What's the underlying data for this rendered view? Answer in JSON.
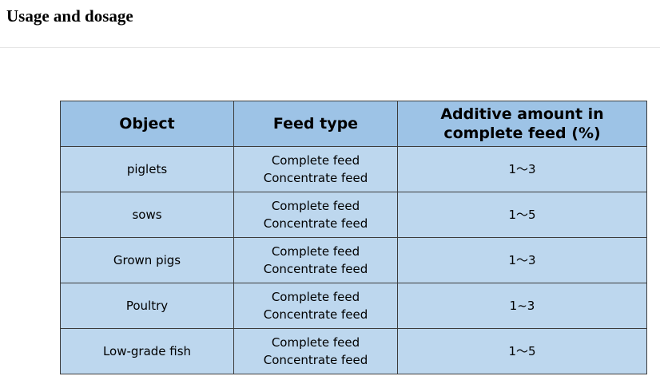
{
  "page": {
    "title": "Usage and dosage"
  },
  "table": {
    "headers": {
      "object": "Object",
      "feed_type": "Feed type",
      "amount": "Additive amount in complete feed (%)"
    },
    "rows": [
      {
        "object": "piglets",
        "feed_line1": "Complete feed",
        "feed_line2": "Concentrate feed",
        "amount": "1～3"
      },
      {
        "object": "sows",
        "feed_line1": "Complete feed",
        "feed_line2": "Concentrate feed",
        "amount": "1～5"
      },
      {
        "object": "Grown pigs",
        "feed_line1": "Complete feed",
        "feed_line2": "Concentrate feed",
        "amount": "1～3"
      },
      {
        "object": "Poultry",
        "feed_line1": "Complete feed",
        "feed_line2": "Concentrate feed",
        "amount": "1~3"
      },
      {
        "object": "Low-grade fish",
        "feed_line1": "Complete feed",
        "feed_line2": "Concentrate feed",
        "amount": "1～5"
      }
    ]
  },
  "colors": {
    "header_bg": "#9dc3e6",
    "cell_bg": "#bdd7ee",
    "border": "#3c3c3c"
  }
}
